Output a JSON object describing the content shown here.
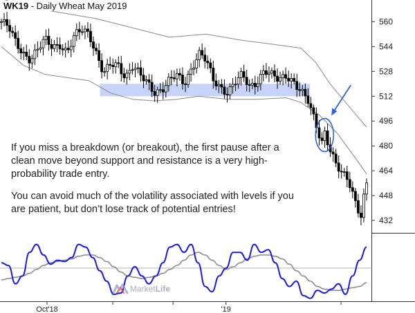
{
  "title": {
    "symbol": "WK19",
    "rest": " - Daily  Wheat May 2019"
  },
  "annotations": [
    "If you miss a breakdown (or breakout), the first pause after a clean move beyond support and resistance is a very high-probability trade entry.",
    "You can avoid much of the volatility associated with levels if you are patient, but don’t lose track of potential entries!"
  ],
  "logo": {
    "text_light": "Market",
    "text_bold": "Life"
  },
  "colors": {
    "candle": "#000000",
    "band": "#888888",
    "zone": "#b9c8f7",
    "oscillator": "#1a1ae6",
    "signal": "#8c8c8c",
    "arrow": "#2a63d9",
    "highlight": "#2a63d9"
  },
  "chart_data": {
    "type": "candlestick",
    "title": "WK19 - Daily  Wheat May 2019",
    "y_axis": {
      "ticks": [
        432,
        448,
        464,
        480,
        496,
        512,
        528,
        544,
        560
      ],
      "range": [
        424,
        574
      ],
      "side": "right"
    },
    "x_axis": {
      "tick_labels": [
        "Oct'18",
        "'19"
      ]
    },
    "support_resistance_zone": {
      "low": 512,
      "high": 520
    },
    "price_close_path": [
      {
        "t": 0,
        "v": 560
      },
      {
        "t": 0.02,
        "v": 556
      },
      {
        "t": 0.04,
        "v": 546
      },
      {
        "t": 0.06,
        "v": 540
      },
      {
        "t": 0.08,
        "v": 536
      },
      {
        "t": 0.1,
        "v": 542
      },
      {
        "t": 0.12,
        "v": 548
      },
      {
        "t": 0.14,
        "v": 544
      },
      {
        "t": 0.16,
        "v": 546
      },
      {
        "t": 0.18,
        "v": 540
      },
      {
        "t": 0.2,
        "v": 550
      },
      {
        "t": 0.22,
        "v": 555
      },
      {
        "t": 0.24,
        "v": 553
      },
      {
        "t": 0.26,
        "v": 540
      },
      {
        "t": 0.28,
        "v": 526
      },
      {
        "t": 0.3,
        "v": 532
      },
      {
        "t": 0.32,
        "v": 532
      },
      {
        "t": 0.34,
        "v": 525
      },
      {
        "t": 0.36,
        "v": 532
      },
      {
        "t": 0.38,
        "v": 525
      },
      {
        "t": 0.4,
        "v": 520
      },
      {
        "t": 0.42,
        "v": 515
      },
      {
        "t": 0.44,
        "v": 517
      },
      {
        "t": 0.46,
        "v": 522
      },
      {
        "t": 0.48,
        "v": 525
      },
      {
        "t": 0.5,
        "v": 520
      },
      {
        "t": 0.52,
        "v": 530
      },
      {
        "t": 0.54,
        "v": 540
      },
      {
        "t": 0.56,
        "v": 535
      },
      {
        "t": 0.58,
        "v": 522
      },
      {
        "t": 0.6,
        "v": 518
      },
      {
        "t": 0.62,
        "v": 515
      },
      {
        "t": 0.64,
        "v": 521
      },
      {
        "t": 0.66,
        "v": 525
      },
      {
        "t": 0.68,
        "v": 518
      },
      {
        "t": 0.7,
        "v": 522
      },
      {
        "t": 0.72,
        "v": 529
      },
      {
        "t": 0.74,
        "v": 525
      },
      {
        "t": 0.76,
        "v": 522
      },
      {
        "t": 0.78,
        "v": 526
      },
      {
        "t": 0.8,
        "v": 522
      },
      {
        "t": 0.82,
        "v": 515
      },
      {
        "t": 0.84,
        "v": 508
      },
      {
        "t": 0.855,
        "v": 498
      },
      {
        "t": 0.87,
        "v": 488
      },
      {
        "t": 0.88,
        "v": 482
      },
      {
        "t": 0.885,
        "v": 490
      },
      {
        "t": 0.9,
        "v": 478
      },
      {
        "t": 0.915,
        "v": 468
      },
      {
        "t": 0.93,
        "v": 462
      },
      {
        "t": 0.95,
        "v": 458
      },
      {
        "t": 0.96,
        "v": 452
      },
      {
        "t": 0.97,
        "v": 444
      },
      {
        "t": 0.98,
        "v": 438
      },
      {
        "t": 0.985,
        "v": 436
      },
      {
        "t": 0.99,
        "v": 445
      },
      {
        "t": 1.0,
        "v": 455
      }
    ],
    "upper_band": [
      {
        "t": 0,
        "v": 575
      },
      {
        "t": 0.06,
        "v": 570
      },
      {
        "t": 0.16,
        "v": 566
      },
      {
        "t": 0.26,
        "v": 562
      },
      {
        "t": 0.36,
        "v": 556
      },
      {
        "t": 0.46,
        "v": 550
      },
      {
        "t": 0.56,
        "v": 552
      },
      {
        "t": 0.66,
        "v": 548
      },
      {
        "t": 0.76,
        "v": 545
      },
      {
        "t": 0.82,
        "v": 543
      },
      {
        "t": 0.86,
        "v": 534
      },
      {
        "t": 0.9,
        "v": 520
      },
      {
        "t": 0.95,
        "v": 506
      },
      {
        "t": 1.0,
        "v": 492
      }
    ],
    "lower_band": [
      {
        "t": 0,
        "v": 544
      },
      {
        "t": 0.06,
        "v": 532
      },
      {
        "t": 0.12,
        "v": 526
      },
      {
        "t": 0.18,
        "v": 524
      },
      {
        "t": 0.24,
        "v": 522
      },
      {
        "t": 0.3,
        "v": 514
      },
      {
        "t": 0.36,
        "v": 510
      },
      {
        "t": 0.42,
        "v": 509
      },
      {
        "t": 0.48,
        "v": 510
      },
      {
        "t": 0.54,
        "v": 512
      },
      {
        "t": 0.62,
        "v": 510
      },
      {
        "t": 0.7,
        "v": 510
      },
      {
        "t": 0.78,
        "v": 511
      },
      {
        "t": 0.82,
        "v": 508
      },
      {
        "t": 0.87,
        "v": 500
      },
      {
        "t": 0.92,
        "v": 488
      },
      {
        "t": 0.97,
        "v": 472
      },
      {
        "t": 1.0,
        "v": 462
      }
    ],
    "oscillator": {
      "range": [
        -1,
        1
      ],
      "baseline": 0,
      "fast": [
        0.2,
        0.1,
        -0.6,
        -0.3,
        0.6,
        0.9,
        0.5,
        0.15,
        0.3,
        0.25,
        0.4,
        0.9,
        0.8,
        0.4,
        -0.1,
        -0.5,
        -1.0,
        -0.95,
        -0.3,
        0.05,
        -0.3,
        -0.6,
        -0.3,
        0.2,
        0.8,
        0.9,
        0.6,
        0.9,
        0.2,
        -0.7,
        -0.9,
        -0.3,
        0.0,
        0.6,
        0.6,
        0.3,
        0.9,
        0.6,
        0.7,
        0.2,
        -0.4,
        -0.7,
        -0.5,
        -1.05,
        -1.15,
        -0.85,
        -0.95,
        -0.8,
        -0.6,
        -1.0,
        -0.3,
        0.3,
        0.8
      ],
      "slow": [
        -0.45,
        -0.4,
        -0.35,
        -0.3,
        -0.2,
        -0.05,
        0.1,
        0.2,
        0.25,
        0.3,
        0.35,
        0.45,
        0.5,
        0.5,
        0.4,
        0.25,
        0.05,
        -0.15,
        -0.3,
        -0.35,
        -0.4,
        -0.35,
        -0.3,
        -0.2,
        -0.05,
        0.1,
        0.3,
        0.5,
        0.6,
        0.5,
        0.3,
        0.1,
        -0.05,
        0.05,
        0.2,
        0.35,
        0.45,
        0.5,
        0.5,
        0.45,
        0.35,
        0.15,
        -0.1,
        -0.3,
        -0.5,
        -0.7,
        -0.8,
        -0.85,
        -0.85,
        -0.8,
        -0.75,
        -0.7,
        -0.55
      ]
    },
    "highlight_ellipse": {
      "t": 0.885,
      "v": 487
    },
    "arrow_target": {
      "t": 0.9,
      "v": 496
    }
  }
}
